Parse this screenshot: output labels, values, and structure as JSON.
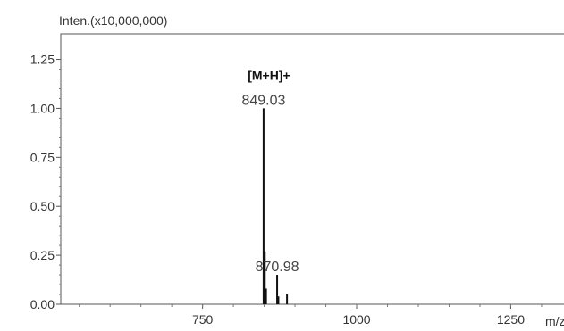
{
  "chart_data": {
    "type": "bar",
    "ylabel": "Inten.(x10,000,000)",
    "xlabel": "m/z",
    "xlim": [
      520,
      1390
    ],
    "ylim": [
      0,
      1.38
    ],
    "y_ticks": [
      "0.00",
      "0.25",
      "0.50",
      "0.75",
      "1.00",
      "1.25"
    ],
    "y_tick_values": [
      0.0,
      0.25,
      0.5,
      0.75,
      1.0,
      1.25
    ],
    "x_ticks": [
      "750",
      "1000",
      "1250"
    ],
    "x_tick_values": [
      750,
      1000,
      1250
    ],
    "peaks": [
      {
        "mz": 849.03,
        "intensity": 1.0
      },
      {
        "mz": 851.0,
        "intensity": 0.27
      },
      {
        "mz": 853.0,
        "intensity": 0.08
      },
      {
        "mz": 870.98,
        "intensity": 0.15
      },
      {
        "mz": 873.0,
        "intensity": 0.04
      },
      {
        "mz": 887.0,
        "intensity": 0.05
      }
    ],
    "peak_labels": [
      {
        "text": "849.03",
        "mz": 849.03,
        "intensity": 1.0
      },
      {
        "text": "870.98",
        "mz": 870.98,
        "intensity": 0.15
      }
    ],
    "annotation": {
      "text": "[M+H]+",
      "mz": 849.03
    }
  }
}
